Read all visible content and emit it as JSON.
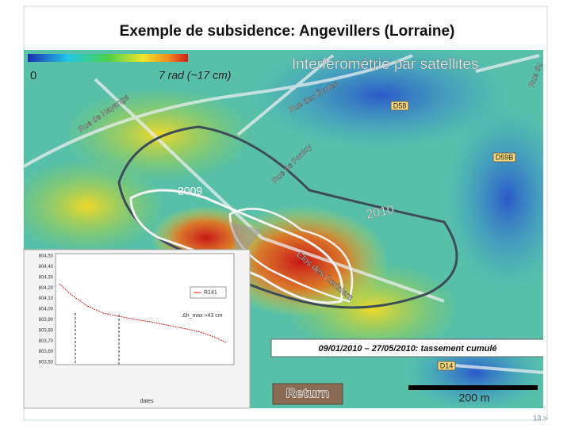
{
  "header": {
    "title": "Exemple de subsidence: Angevillers (Lorraine)"
  },
  "map": {
    "scale_min": "0",
    "scale_max": "7 rad (~17 cm)",
    "heading": "Interférométrie par satellites",
    "streets": [
      "Rue de Hayange",
      "Rue des Écoles",
      "Rue de Fontoy",
      "Clos des Cerisiers",
      "D58",
      "D59B",
      "D14",
      "Rue du"
    ],
    "zones": [
      "2009",
      "2010"
    ],
    "caption": "09/01/2010 – 27/05/2010: tassement cumulé",
    "scalebar": "200 m"
  },
  "inset": {
    "yticks": [
      "804,50",
      "804,40",
      "804,30",
      "804,20",
      "804,10",
      "804,00",
      "803,90",
      "803,80",
      "803,70",
      "803,60",
      "803,50"
    ],
    "legend": "R141",
    "note": "Δh_max ≈43 cm",
    "xlabel": "dates"
  },
  "button": {
    "label": "Return"
  },
  "footer": {
    "page": "13 >"
  }
}
